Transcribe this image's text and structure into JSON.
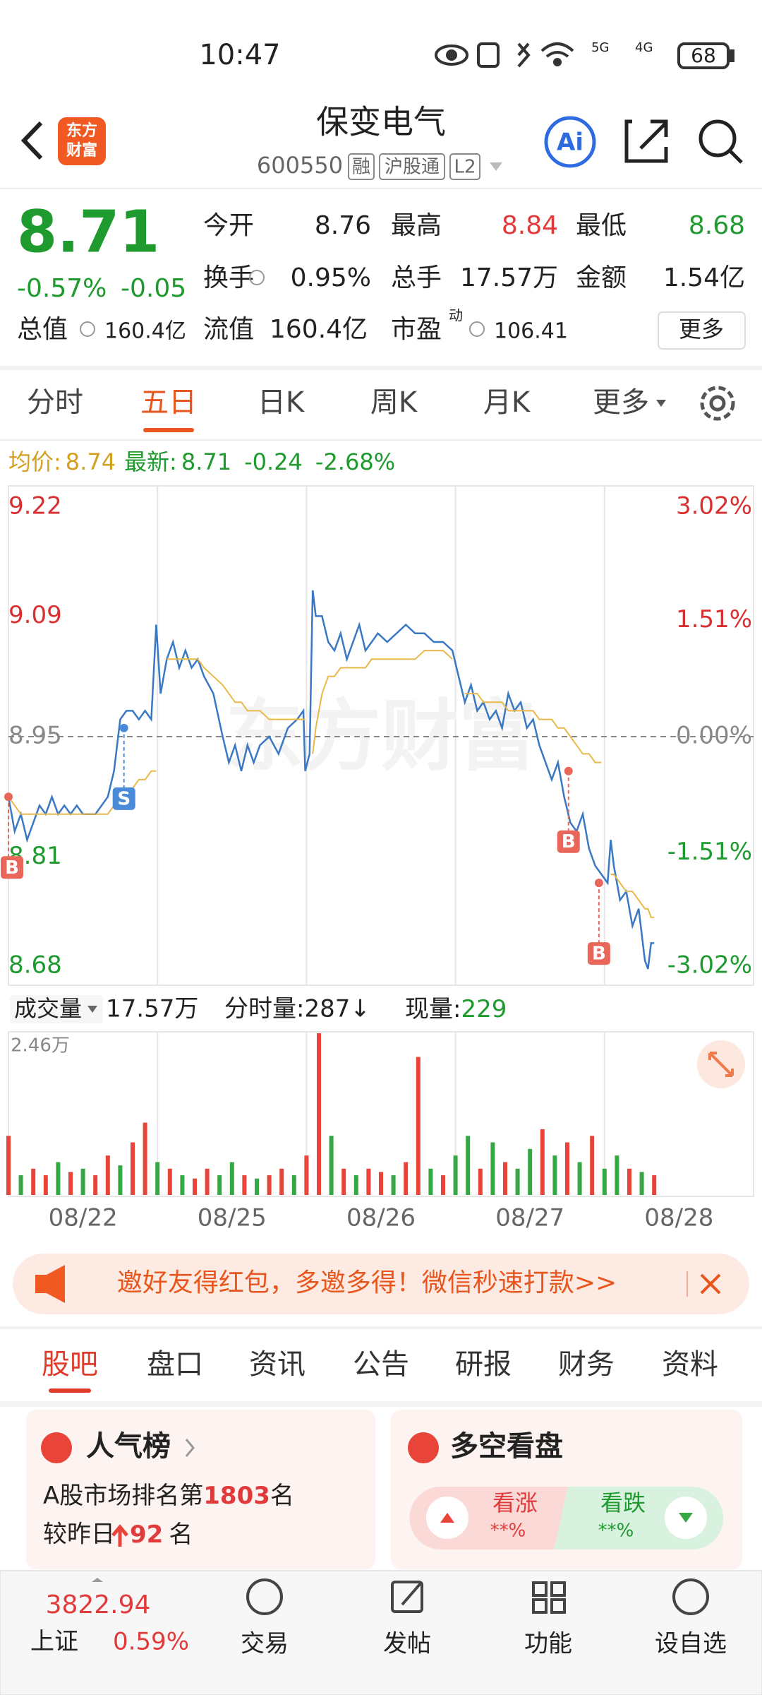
{
  "status_bar": {
    "time": "10:47",
    "battery": "68",
    "network": [
      "5G",
      "4G"
    ]
  },
  "header": {
    "logo": [
      "东方",
      "财富"
    ],
    "title": "保变电气",
    "code": "600550",
    "tags": [
      "融",
      "沪股通",
      "L2"
    ],
    "ai": "Ai"
  },
  "quote": {
    "price": "8.71",
    "change_pct": "-0.57%",
    "change": "-0.05",
    "fields": [
      {
        "label": "今开",
        "value": "8.76",
        "color": "#222222"
      },
      {
        "label": "最高",
        "value": "8.84",
        "color": "#e03a3a"
      },
      {
        "label": "最低",
        "value": "8.68",
        "color": "#1f9a2e"
      },
      {
        "label": "换手",
        "value": "0.95%",
        "color": "#222222"
      },
      {
        "label": "总手",
        "value": "17.57万",
        "color": "#222222"
      },
      {
        "label": "金额",
        "value": "1.54亿",
        "color": "#222222"
      }
    ],
    "total_value": {
      "label": "总值",
      "value": "160.4亿"
    },
    "float_value": {
      "label": "流值",
      "value": "160.4亿"
    },
    "pe": {
      "label": "市盈",
      "sup": "动",
      "value": "106.41"
    },
    "more": "更多"
  },
  "tabs": {
    "items": [
      "分时",
      "五日",
      "日K",
      "周K",
      "月K",
      "更多"
    ],
    "active": 1
  },
  "chart_info": {
    "avg_label": "均价:",
    "avg": "8.74",
    "latest_label": "最新:",
    "latest": "8.71",
    "change": "-0.24",
    "change_pct": "-2.68%"
  },
  "chart_data": [
    {
      "type": "line",
      "watermark": "东方财富",
      "x": [
        0,
        10,
        20,
        30,
        40,
        50,
        60,
        70,
        80,
        90,
        100,
        110,
        120,
        140,
        160,
        170,
        180,
        190,
        200,
        210,
        220,
        230,
        238,
        245,
        255,
        265,
        275,
        285,
        295,
        305,
        315,
        330,
        345,
        355,
        365,
        375,
        385,
        395,
        405,
        420,
        435,
        450,
        465,
        475,
        478,
        485,
        490,
        495,
        505,
        515,
        525,
        535,
        545,
        555,
        565,
        575,
        585,
        595,
        610,
        625,
        640,
        655,
        670,
        685,
        700,
        715,
        725,
        735,
        745,
        755,
        765,
        775,
        785,
        795,
        805,
        815,
        825,
        835,
        845,
        855,
        865,
        875,
        885,
        895,
        905,
        915,
        925,
        935,
        945,
        955,
        965,
        970,
        975,
        985,
        995,
        1005,
        1015,
        1025,
        1030,
        1035,
        1040
      ],
      "xlim": [
        0,
        1200
      ],
      "ylim": [
        8.68,
        9.22
      ],
      "yticks": [
        9.22,
        9.09,
        8.95,
        8.81,
        8.68
      ],
      "y2lim": [
        -3.02,
        3.02
      ],
      "y2ticks": [
        {
          "value": 3.02,
          "label": "3.02%"
        },
        {
          "value": 1.51,
          "label": "1.51%"
        },
        {
          "value": 0,
          "label": "0.00%"
        },
        {
          "value": -1.51,
          "label": "-1.51%"
        },
        {
          "value": -3.02,
          "label": "-3.02%"
        }
      ],
      "series": [
        {
          "color": "#3a78c4",
          "values": [
            8.88,
            8.84,
            8.86,
            8.83,
            8.85,
            8.87,
            8.86,
            8.88,
            8.86,
            8.87,
            8.86,
            8.87,
            8.86,
            8.86,
            8.88,
            8.91,
            8.97,
            8.98,
            8.98,
            8.97,
            8.98,
            8.97,
            9.08,
            9.0,
            9.04,
            9.06,
            9.03,
            9.05,
            9.03,
            9.04,
            9.02,
            9.0,
            8.95,
            8.92,
            8.94,
            8.91,
            8.94,
            8.92,
            8.94,
            8.95,
            8.93,
            8.96,
            8.97,
            8.98,
            8.91,
            8.93,
            9.12,
            9.09,
            9.09,
            9.06,
            9.05,
            9.07,
            9.04,
            9.06,
            9.08,
            9.05,
            9.06,
            9.07,
            9.06,
            9.07,
            9.08,
            9.07,
            9.07,
            9.06,
            9.06,
            9.05,
            9.02,
            8.99,
            9.01,
            8.98,
            8.99,
            8.97,
            8.98,
            8.96,
            9.0,
            8.98,
            8.99,
            8.96,
            8.97,
            8.94,
            8.92,
            8.9,
            8.92,
            8.88,
            8.85,
            8.84,
            8.86,
            8.82,
            8.8,
            8.79,
            8.78,
            8.83,
            8.8,
            8.76,
            8.77,
            8.73,
            8.75,
            8.69,
            8.68,
            8.71,
            8.71
          ]
        },
        {
          "color": "#e8b84a",
          "values": [
            8.88,
            8.87,
            8.86,
            8.86,
            8.86,
            8.86,
            8.86,
            8.86,
            8.86,
            8.86,
            8.86,
            8.86,
            8.86,
            8.86,
            8.86,
            8.87,
            8.88,
            8.89,
            8.89,
            8.9,
            8.9,
            8.91,
            8.91,
            null,
            9.04,
            9.04,
            9.04,
            9.04,
            9.04,
            9.04,
            9.03,
            9.02,
            9.01,
            9.0,
            8.99,
            8.99,
            8.98,
            8.98,
            8.98,
            8.97,
            8.97,
            8.97,
            8.97,
            8.97,
            8.97,
            null,
            8.93,
            8.96,
            9.0,
            9.02,
            9.02,
            9.03,
            9.03,
            9.03,
            9.03,
            9.03,
            9.04,
            9.04,
            9.04,
            9.04,
            9.04,
            9.04,
            9.05,
            9.05,
            9.05,
            9.04,
            null,
            9.0,
            9.0,
            9.0,
            8.99,
            8.99,
            8.99,
            8.99,
            8.98,
            8.98,
            8.98,
            8.98,
            8.98,
            8.97,
            8.97,
            8.97,
            8.96,
            8.96,
            8.95,
            8.94,
            8.93,
            8.93,
            8.92,
            8.92,
            null,
            8.79,
            8.79,
            8.78,
            8.77,
            8.77,
            8.76,
            8.75,
            8.75,
            8.74,
            8.74
          ]
        }
      ],
      "markers": [
        {
          "label": "B",
          "x": 0,
          "value": 8.88,
          "color": "#e8665a"
        },
        {
          "label": "S",
          "x": 186,
          "value": 8.96,
          "color": "#4a8ad8"
        },
        {
          "label": "B",
          "x": 902,
          "value": 8.91,
          "color": "#e8665a"
        },
        {
          "label": "B",
          "x": 951,
          "value": 8.78,
          "color": "#e8665a"
        }
      ]
    },
    {
      "type": "bar",
      "x": [
        0,
        20,
        40,
        60,
        80,
        100,
        120,
        140,
        160,
        180,
        200,
        220,
        240,
        260,
        280,
        300,
        320,
        340,
        360,
        380,
        400,
        420,
        440,
        460,
        480,
        500,
        520,
        540,
        560,
        580,
        600,
        620,
        640,
        660,
        680,
        700,
        720,
        740,
        760,
        780,
        800,
        820,
        840,
        860,
        880,
        900,
        920,
        940,
        960,
        980,
        1000,
        1020,
        1040
      ],
      "xlim": [
        0,
        1200
      ],
      "xticks": [
        {
          "value": 120,
          "label": "08/22"
        },
        {
          "value": 360,
          "label": "08/25"
        },
        {
          "value": 600,
          "label": "08/26"
        },
        {
          "value": 840,
          "label": "08/27"
        },
        {
          "value": 1080,
          "label": "08/28"
        }
      ],
      "ylim": [
        0,
        24600
      ],
      "yticks": [
        {
          "value": 24600,
          "label": "2.46万"
        }
      ],
      "values": [
        9000,
        3000,
        4000,
        3000,
        5000,
        3500,
        4000,
        3000,
        6000,
        4500,
        8000,
        11000,
        5000,
        4000,
        3000,
        2500,
        4000,
        3000,
        5000,
        3000,
        2500,
        3000,
        4000,
        3000,
        6000,
        24600,
        9000,
        4000,
        3000,
        4000,
        3500,
        3000,
        5000,
        21000,
        4000,
        3000,
        6000,
        9000,
        4000,
        8000,
        5000,
        4000,
        7000,
        10000,
        6000,
        8000,
        5000,
        9000,
        4000,
        6000,
        4000,
        3500,
        3000
      ],
      "colors": [
        "#e8443a",
        "#35a845",
        "#e8443a",
        "#e8443a",
        "#35a845",
        "#e8443a",
        "#35a845",
        "#e8443a",
        "#e8443a",
        "#35a845",
        "#e8443a",
        "#e8443a",
        "#35a845",
        "#e8443a",
        "#35a845",
        "#e8443a",
        "#e8443a",
        "#35a845",
        "#35a845",
        "#e8443a",
        "#35a845",
        "#e8443a",
        "#e8443a",
        "#35a845",
        "#e8443a",
        "#e8443a",
        "#35a845",
        "#e8443a",
        "#35a845",
        "#e8443a",
        "#e8443a",
        "#35a845",
        "#e8443a",
        "#e8443a",
        "#35a845",
        "#e8443a",
        "#35a845",
        "#35a845",
        "#e8443a",
        "#35a845",
        "#e8443a",
        "#35a845",
        "#35a845",
        "#e8443a",
        "#35a845",
        "#e8443a",
        "#35a845",
        "#e8443a",
        "#35a845",
        "#35a845",
        "#e8443a",
        "#35a845",
        "#e8443a"
      ]
    }
  ],
  "volume_info": {
    "selector": "成交量",
    "total": "17.57万",
    "tick_volume": "分时量:287↓",
    "current_label": "现量:",
    "current": "229"
  },
  "banner": {
    "text": "邀好友得红包，多邀多得！微信秒速打款>>"
  },
  "section_tabs": {
    "items": [
      "股吧",
      "盘口",
      "资讯",
      "公告",
      "研报",
      "财务",
      "资料"
    ],
    "active": 0
  },
  "cards": {
    "popularity": {
      "title": "人气榜",
      "rank_prefix": "A股市场排名第",
      "rank": "1803",
      "rank_suffix": "名",
      "change_prefix": "较昨日",
      "change": "92",
      "change_suffix": "名"
    },
    "sentiment": {
      "title": "多空看盘",
      "bull": "看涨",
      "bull_pct": "**%",
      "bear": "看跌",
      "bear_pct": "**%"
    }
  },
  "bottom_nav": {
    "index": {
      "value": "3822.94",
      "name": "上证",
      "change": "0.59%"
    },
    "items": [
      "交易",
      "发帖",
      "功能",
      "设自选"
    ]
  }
}
